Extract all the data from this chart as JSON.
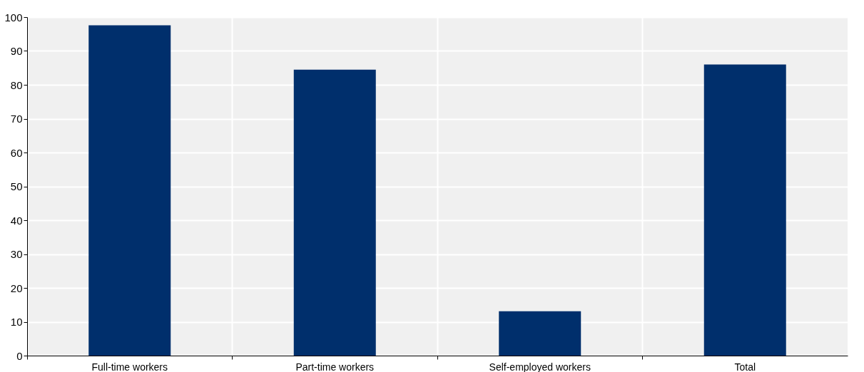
{
  "chart_data": {
    "type": "bar",
    "categories": [
      "Full-time workers",
      "Part-time workers",
      "Self-employed workers",
      "Total"
    ],
    "values": [
      97.6,
      84.5,
      13.1,
      86.0
    ],
    "color": "#002f6c",
    "ylim": [
      0,
      100
    ],
    "yticks": [
      0,
      10,
      20,
      30,
      40,
      50,
      60,
      70,
      80,
      90,
      100
    ],
    "grid": true
  }
}
